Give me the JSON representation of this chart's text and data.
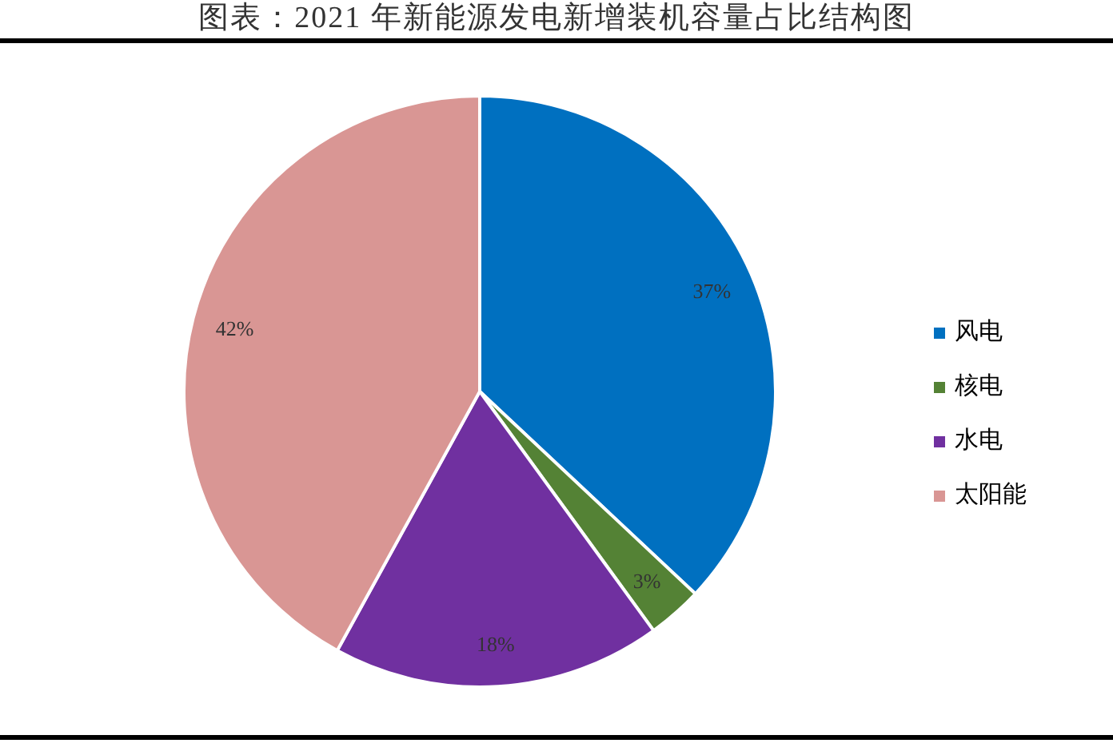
{
  "chart_data": {
    "type": "pie",
    "title": "图表：2021 年新能源发电新增装机容量占比结构图",
    "categories": [
      "风电",
      "核电",
      "水电",
      "太阳能"
    ],
    "values": [
      37,
      3,
      18,
      42
    ],
    "colors": [
      "#0070c0",
      "#548235",
      "#7030a0",
      "#d99694"
    ],
    "value_labels": [
      "37%",
      "3%",
      "18%",
      "42%"
    ],
    "legend": "right"
  }
}
